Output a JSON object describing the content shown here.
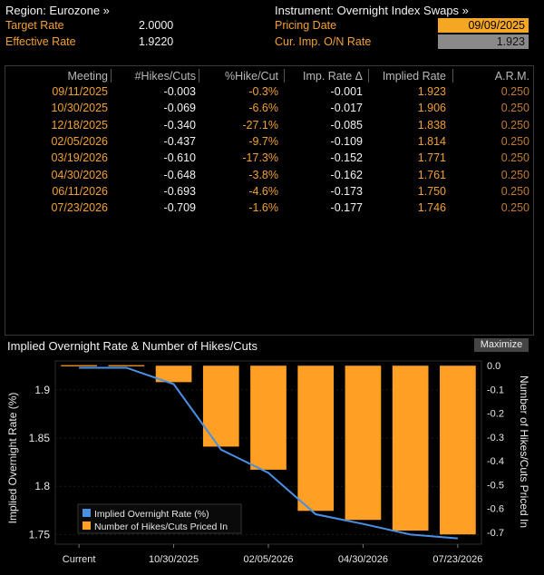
{
  "header": {
    "region_label": "Region: Eurozone »",
    "target_rate_label": "Target Rate",
    "target_rate_value": "2.0000",
    "effective_rate_label": "Effective Rate",
    "effective_rate_value": "1.9220",
    "instrument_label": "Instrument: Overnight Index Swaps »",
    "pricing_date_label": "Pricing Date",
    "pricing_date_value": "09/09/2025",
    "cur_imp_label": "Cur. Imp. O/N Rate",
    "cur_imp_value": "1.923"
  },
  "table": {
    "columns": [
      "Meeting",
      "#Hikes/Cuts",
      "%Hike/Cut",
      "Imp. Rate Δ",
      "Implied Rate",
      "A.R.M."
    ],
    "rows": [
      [
        "09/11/2025",
        "-0.003",
        "-0.3%",
        "-0.001",
        "1.923",
        "0.250"
      ],
      [
        "10/30/2025",
        "-0.069",
        "-6.6%",
        "-0.017",
        "1.906",
        "0.250"
      ],
      [
        "12/18/2025",
        "-0.340",
        "-27.1%",
        "-0.085",
        "1.838",
        "0.250"
      ],
      [
        "02/05/2026",
        "-0.437",
        "-9.7%",
        "-0.109",
        "1.814",
        "0.250"
      ],
      [
        "03/19/2026",
        "-0.610",
        "-17.3%",
        "-0.152",
        "1.771",
        "0.250"
      ],
      [
        "04/30/2026",
        "-0.648",
        "-3.8%",
        "-0.162",
        "1.761",
        "0.250"
      ],
      [
        "06/11/2026",
        "-0.693",
        "-4.6%",
        "-0.173",
        "1.750",
        "0.250"
      ],
      [
        "07/23/2026",
        "-0.709",
        "-1.6%",
        "-0.177",
        "1.746",
        "0.250"
      ]
    ]
  },
  "chart_panel": {
    "title": "Implied Overnight Rate & Number of Hikes/Cuts",
    "maximize_label": "Maximize"
  },
  "chart_data": {
    "type": "bar+line",
    "categories": [
      "Current",
      "09/11/2025",
      "10/30/2025",
      "12/18/2025",
      "02/05/2026",
      "03/19/2026",
      "04/30/2026",
      "06/11/2026",
      "07/23/2026"
    ],
    "x_tick_labels": [
      "Current",
      "10/30/2025",
      "02/05/2026",
      "04/30/2026",
      "07/23/2026"
    ],
    "series": [
      {
        "name": "Implied Overnight Rate (%)",
        "axis": "left",
        "kind": "line",
        "color": "#4a90e2",
        "values": [
          1.923,
          1.923,
          1.906,
          1.838,
          1.814,
          1.771,
          1.761,
          1.75,
          1.746
        ]
      },
      {
        "name": "Number of Hikes/Cuts Priced In",
        "axis": "right",
        "kind": "bar",
        "color": "#ffa024",
        "values": [
          0.0,
          -0.003,
          -0.069,
          -0.34,
          -0.437,
          -0.61,
          -0.648,
          -0.693,
          -0.709
        ]
      }
    ],
    "ylabel_left": "Implied Overnight Rate (%)",
    "ylabel_right": "Number of Hikes/Cuts Priced In",
    "left_ticks": [
      "1.9",
      "1.85",
      "1.8",
      "1.75"
    ],
    "right_ticks": [
      "0.0",
      "-0.1",
      "-0.2",
      "-0.3",
      "-0.4",
      "-0.5",
      "-0.6",
      "-0.7"
    ],
    "left_ylim": [
      1.74,
      1.93
    ],
    "right_ylim": [
      -0.75,
      0.02
    ],
    "legend_position": "bottom-left"
  },
  "colors": {
    "accent": "#f0a030",
    "bar": "#ffa024",
    "line": "#4a90e2",
    "input_bg": "#f5a623"
  }
}
